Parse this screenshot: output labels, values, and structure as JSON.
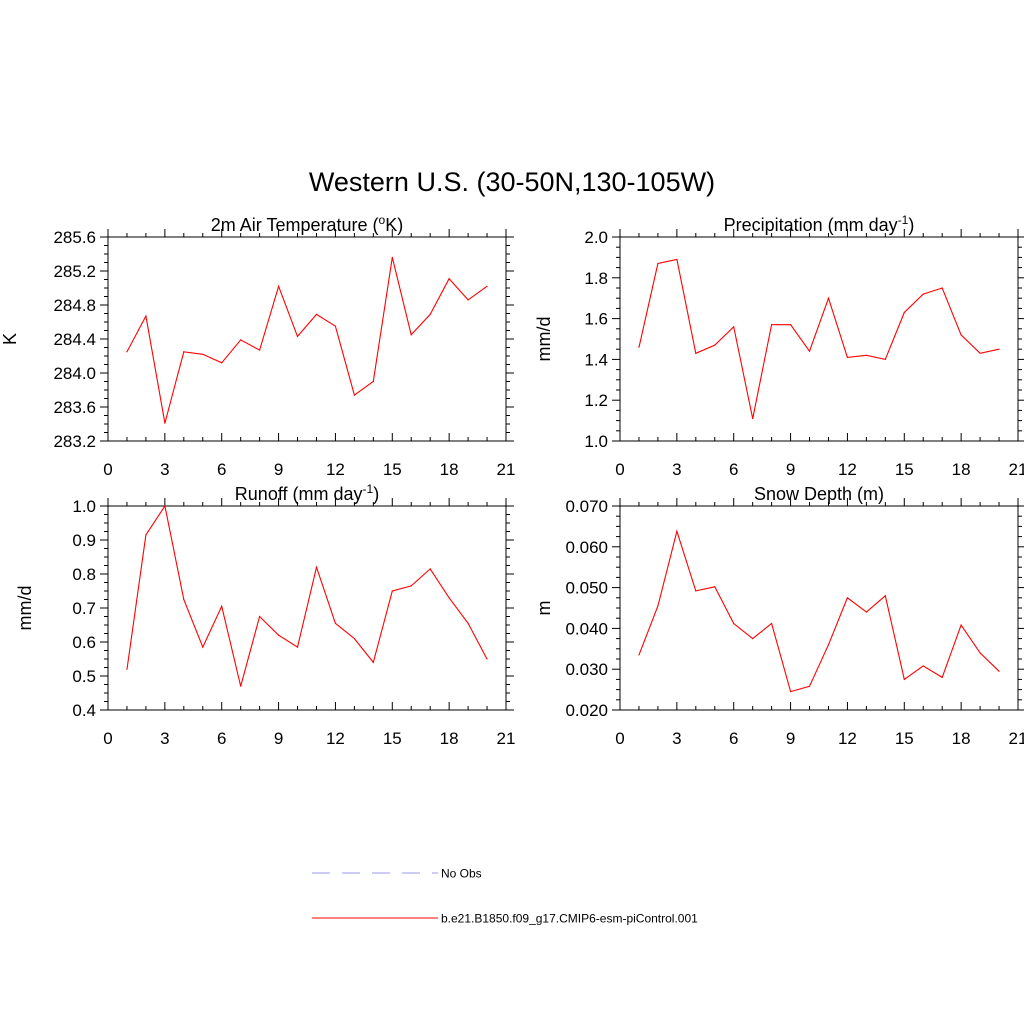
{
  "figure": {
    "title": "Western U.S. (30-50N,130-105W)"
  },
  "legend": {
    "entries": [
      {
        "label": "No Obs",
        "color": "#9a9ae8",
        "style": "dashed"
      },
      {
        "label": "b.e21.B1850.f09_g17.CMIP6-esm-piControl.001",
        "color": "#ff0000",
        "style": "solid"
      }
    ]
  },
  "chart_data": [
    {
      "type": "line",
      "title": "2m Air Temperature (",
      "title_sup": "o",
      "title_after": "K)",
      "xlabel": "",
      "ylabel": "K",
      "xlim": [
        0,
        21
      ],
      "ylim": [
        283.2,
        285.6
      ],
      "xticks": [
        "0",
        "3",
        "6",
        "9",
        "12",
        "15",
        "18",
        "21"
      ],
      "yticks": [
        "283.2",
        "283.6",
        "284.0",
        "284.4",
        "284.8",
        "285.2",
        "285.6"
      ],
      "series": [
        {
          "color": "#ff0000",
          "x": [
            1,
            2,
            3,
            4,
            5,
            6,
            7,
            8,
            9,
            10,
            11,
            12,
            13,
            14,
            15,
            16,
            17,
            18,
            19,
            20
          ],
          "y": [
            284.25,
            284.67,
            283.41,
            284.25,
            284.22,
            284.12,
            284.39,
            284.27,
            285.02,
            284.43,
            284.69,
            284.55,
            283.74,
            283.9,
            285.36,
            284.45,
            284.69,
            285.11,
            284.86,
            285.02
          ]
        }
      ]
    },
    {
      "type": "line",
      "title": "Precipitation (mm day",
      "title_sup": "-1",
      "title_after": ")",
      "xlabel": "",
      "ylabel": "mm/d",
      "xlim": [
        0,
        21
      ],
      "ylim": [
        1.0,
        2.0
      ],
      "xticks": [
        "0",
        "3",
        "6",
        "9",
        "12",
        "15",
        "18",
        "21"
      ],
      "yticks": [
        "1.0",
        "1.2",
        "1.4",
        "1.6",
        "1.8",
        "2.0"
      ],
      "series": [
        {
          "color": "#ff0000",
          "x": [
            1,
            2,
            3,
            4,
            5,
            6,
            7,
            8,
            9,
            10,
            11,
            12,
            13,
            14,
            15,
            16,
            17,
            18,
            19,
            20
          ],
          "y": [
            1.46,
            1.87,
            1.89,
            1.43,
            1.47,
            1.56,
            1.11,
            1.57,
            1.57,
            1.44,
            1.7,
            1.41,
            1.42,
            1.4,
            1.63,
            1.72,
            1.75,
            1.52,
            1.43,
            1.45
          ]
        }
      ]
    },
    {
      "type": "line",
      "title": "Runoff (mm day",
      "title_sup": "-1",
      "title_after": ")",
      "xlabel": "",
      "ylabel": "mm/d",
      "xlim": [
        0,
        21
      ],
      "ylim": [
        0.4,
        1.0
      ],
      "xticks": [
        "0",
        "3",
        "6",
        "9",
        "12",
        "15",
        "18",
        "21"
      ],
      "yticks": [
        "0.4",
        "0.5",
        "0.6",
        "0.7",
        "0.8",
        "0.9",
        "1.0"
      ],
      "series": [
        {
          "color": "#ff0000",
          "x": [
            1,
            2,
            3,
            4,
            5,
            6,
            7,
            8,
            9,
            10,
            11,
            12,
            13,
            14,
            15,
            16,
            17,
            18,
            19,
            20
          ],
          "y": [
            0.52,
            0.915,
            1.0,
            0.725,
            0.585,
            0.705,
            0.47,
            0.675,
            0.62,
            0.585,
            0.82,
            0.655,
            0.61,
            0.54,
            0.75,
            0.765,
            0.815,
            0.73,
            0.655,
            0.55
          ]
        }
      ]
    },
    {
      "type": "line",
      "title": "Snow Depth (m)",
      "title_sup": "",
      "title_after": "",
      "xlabel": "",
      "ylabel": "m",
      "xlim": [
        0,
        21
      ],
      "ylim": [
        0.02,
        0.07
      ],
      "xticks": [
        "0",
        "3",
        "6",
        "9",
        "12",
        "15",
        "18",
        "21"
      ],
      "yticks": [
        "0.020",
        "0.030",
        "0.040",
        "0.050",
        "0.060",
        "0.070"
      ],
      "series": [
        {
          "color": "#ff0000",
          "x": [
            1,
            2,
            3,
            4,
            5,
            6,
            7,
            8,
            9,
            10,
            11,
            12,
            13,
            14,
            15,
            16,
            17,
            18,
            19,
            20
          ],
          "y": [
            0.0335,
            0.0455,
            0.0638,
            0.0492,
            0.0502,
            0.0412,
            0.0375,
            0.0412,
            0.0245,
            0.0258,
            0.036,
            0.0475,
            0.044,
            0.048,
            0.0275,
            0.0308,
            0.028,
            0.0408,
            0.034,
            0.0295
          ]
        }
      ]
    }
  ]
}
